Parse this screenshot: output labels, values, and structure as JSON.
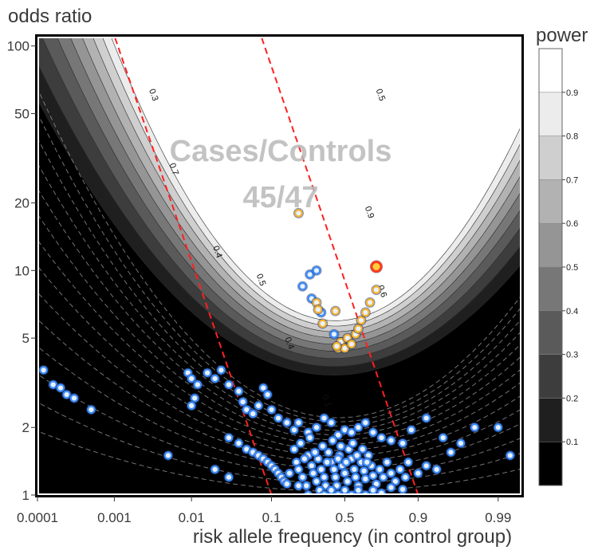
{
  "chart_data": {
    "type": "scatter",
    "title": "",
    "xlabel": "risk allele frequency (in control group)",
    "ylabel": "odds ratio",
    "x_scale": "logit",
    "y_scale": "log",
    "xlim": [
      0.0001,
      0.995
    ],
    "ylim": [
      1,
      110
    ],
    "x_ticks": [
      {
        "value": 0.0001,
        "label": "0.0001"
      },
      {
        "value": 0.001,
        "label": "0.001"
      },
      {
        "value": 0.01,
        "label": "0.01"
      },
      {
        "value": 0.1,
        "label": "0.1"
      },
      {
        "value": 0.5,
        "label": "0.5"
      },
      {
        "value": 0.9,
        "label": "0.9"
      },
      {
        "value": 0.99,
        "label": "0.99"
      }
    ],
    "y_ticks": [
      {
        "value": 1,
        "label": "1"
      },
      {
        "value": 2,
        "label": "2"
      },
      {
        "value": 5,
        "label": "5"
      },
      {
        "value": 10,
        "label": "10"
      },
      {
        "value": 20,
        "label": "20"
      },
      {
        "value": 50,
        "label": "50"
      },
      {
        "value": 100,
        "label": "100"
      }
    ],
    "annotation_lines": [
      "Cases/Controls",
      "45/47"
    ],
    "reference_lines_x": [
      0.1,
      0.9
    ],
    "reference_line_color": "#ff2020",
    "colorbar": {
      "title": "power",
      "ticks": [
        "0.1",
        "0.2",
        "0.3",
        "0.4",
        "0.5",
        "0.6",
        "0.7",
        "0.8",
        "0.9"
      ],
      "levels": [
        "#000000",
        "#1f1f1f",
        "#3d3d3d",
        "#5a5a5a",
        "#777777",
        "#959595",
        "#b2b2b2",
        "#cfcfcf",
        "#ececec",
        "#ffffff"
      ]
    },
    "contour_labels": [
      {
        "text": "0.3",
        "x": 0.003,
        "y": 60
      },
      {
        "text": "0.7",
        "x": 0.0055,
        "y": 28
      },
      {
        "text": "0.4",
        "x": 0.02,
        "y": 12
      },
      {
        "text": "0.5",
        "x": 0.07,
        "y": 9
      },
      {
        "text": "0.4",
        "x": 0.15,
        "y": 4.7
      },
      {
        "text": "0.5",
        "x": 0.73,
        "y": 60
      },
      {
        "text": "0.9",
        "x": 0.66,
        "y": 18
      },
      {
        "text": "0.6",
        "x": 0.74,
        "y": 8
      },
      {
        "text": "0.1",
        "x": 0.35,
        "y": 2.6
      }
    ],
    "series": [
      {
        "color": "#3c8cff",
        "points": [
          [
            0.00012,
            3.6
          ],
          [
            0.00016,
            3.1
          ],
          [
            0.0002,
            3.0
          ],
          [
            0.00024,
            2.8
          ],
          [
            0.0003,
            2.7
          ],
          [
            0.0005,
            2.4
          ],
          [
            0.009,
            3.5
          ],
          [
            0.01,
            3.3
          ],
          [
            0.012,
            3.1
          ],
          [
            0.011,
            2.7
          ],
          [
            0.01,
            2.5
          ],
          [
            0.016,
            3.5
          ],
          [
            0.02,
            3.3
          ],
          [
            0.024,
            3.6
          ],
          [
            0.03,
            3.1
          ],
          [
            0.04,
            2.9
          ],
          [
            0.045,
            2.6
          ],
          [
            0.05,
            2.4
          ],
          [
            0.06,
            2.3
          ],
          [
            0.07,
            2.5
          ],
          [
            0.08,
            3.0
          ],
          [
            0.09,
            2.8
          ],
          [
            0.1,
            2.4
          ],
          [
            0.12,
            2.2
          ],
          [
            0.15,
            2.1
          ],
          [
            0.18,
            1.95
          ],
          [
            0.2,
            2.1
          ],
          [
            0.25,
            1.9
          ],
          [
            0.3,
            2.0
          ],
          [
            0.35,
            2.2
          ],
          [
            0.4,
            2.1
          ],
          [
            0.45,
            1.85
          ],
          [
            0.5,
            1.95
          ],
          [
            0.55,
            1.9
          ],
          [
            0.6,
            2.0
          ],
          [
            0.65,
            2.1
          ],
          [
            0.7,
            1.9
          ],
          [
            0.75,
            1.8
          ],
          [
            0.8,
            1.75
          ],
          [
            0.85,
            1.7
          ],
          [
            0.88,
            1.95
          ],
          [
            0.92,
            2.2
          ],
          [
            0.95,
            1.8
          ],
          [
            0.97,
            1.7
          ],
          [
            0.98,
            2.0
          ],
          [
            0.99,
            2.0
          ],
          [
            0.993,
            1.5
          ],
          [
            0.03,
            1.8
          ],
          [
            0.04,
            1.7
          ],
          [
            0.05,
            1.6
          ],
          [
            0.06,
            1.55
          ],
          [
            0.07,
            1.5
          ],
          [
            0.08,
            1.45
          ],
          [
            0.09,
            1.4
          ],
          [
            0.1,
            1.35
          ],
          [
            0.11,
            1.3
          ],
          [
            0.12,
            1.25
          ],
          [
            0.13,
            1.2
          ],
          [
            0.14,
            1.15
          ],
          [
            0.15,
            1.12
          ],
          [
            0.16,
            1.25
          ],
          [
            0.18,
            1.6
          ],
          [
            0.19,
            1.4
          ],
          [
            0.2,
            1.3
          ],
          [
            0.22,
            1.2
          ],
          [
            0.24,
            1.1
          ],
          [
            0.25,
            1.5
          ],
          [
            0.27,
            1.35
          ],
          [
            0.28,
            1.25
          ],
          [
            0.3,
            1.15
          ],
          [
            0.31,
            1.45
          ],
          [
            0.33,
            1.3
          ],
          [
            0.35,
            1.2
          ],
          [
            0.36,
            1.1
          ],
          [
            0.38,
            1.55
          ],
          [
            0.4,
            1.4
          ],
          [
            0.42,
            1.3
          ],
          [
            0.43,
            1.2
          ],
          [
            0.44,
            1.1
          ],
          [
            0.46,
            1.5
          ],
          [
            0.48,
            1.35
          ],
          [
            0.5,
            1.25
          ],
          [
            0.52,
            1.15
          ],
          [
            0.53,
            1.6
          ],
          [
            0.55,
            1.45
          ],
          [
            0.57,
            1.3
          ],
          [
            0.58,
            1.2
          ],
          [
            0.6,
            1.1
          ],
          [
            0.62,
            1.4
          ],
          [
            0.64,
            1.28
          ],
          [
            0.65,
            1.18
          ],
          [
            0.67,
            1.5
          ],
          [
            0.69,
            1.35
          ],
          [
            0.7,
            1.22
          ],
          [
            0.72,
            1.12
          ],
          [
            0.74,
            1.3
          ],
          [
            0.76,
            1.2
          ],
          [
            0.78,
            1.4
          ],
          [
            0.8,
            1.25
          ],
          [
            0.82,
            1.15
          ],
          [
            0.84,
            1.3
          ],
          [
            0.86,
            1.2
          ],
          [
            0.87,
            1.4
          ],
          [
            0.9,
            1.25
          ],
          [
            0.92,
            1.35
          ],
          [
            0.94,
            1.3
          ],
          [
            0.96,
            1.55
          ],
          [
            0.005,
            1.5
          ],
          [
            0.02,
            1.3
          ],
          [
            0.03,
            1.2
          ],
          [
            0.21,
            1.7
          ],
          [
            0.26,
            1.8
          ],
          [
            0.34,
            1.65
          ],
          [
            0.41,
            1.75
          ],
          [
            0.47,
            1.65
          ],
          [
            0.56,
            1.7
          ],
          [
            0.63,
            1.6
          ],
          [
            0.23,
            1.45
          ],
          [
            0.29,
            1.55
          ],
          [
            0.37,
            1.4
          ],
          [
            0.45,
            1.45
          ],
          [
            0.51,
            1.4
          ],
          [
            0.59,
            1.5
          ],
          [
            0.66,
            1.4
          ],
          [
            0.32,
            1.05
          ],
          [
            0.4,
            1.05
          ],
          [
            0.5,
            1.05
          ],
          [
            0.6,
            1.05
          ],
          [
            0.7,
            1.05
          ],
          [
            0.8,
            1.08
          ],
          [
            0.2,
            1.1
          ],
          [
            0.25,
            1.0
          ],
          [
            0.35,
            1.0
          ],
          [
            0.45,
            1.0
          ],
          [
            0.55,
            1.0
          ],
          [
            0.65,
            1.0
          ],
          [
            0.75,
            1.02
          ],
          [
            0.85,
            1.06
          ],
          [
            0.22,
            8.5
          ],
          [
            0.26,
            9.6
          ],
          [
            0.3,
            10.0
          ],
          [
            0.27,
            7.5
          ],
          [
            0.33,
            6.5
          ],
          [
            0.42,
            5.2
          ]
        ]
      },
      {
        "color": "#f5b12e",
        "points": [
          [
            0.2,
            18.0
          ],
          [
            0.3,
            7.2
          ],
          [
            0.31,
            6.7
          ],
          [
            0.34,
            5.8
          ],
          [
            0.43,
            6.6
          ],
          [
            0.47,
            4.8
          ],
          [
            0.45,
            4.5
          ],
          [
            0.5,
            4.5
          ],
          [
            0.52,
            5.0
          ],
          [
            0.55,
            4.7
          ],
          [
            0.58,
            5.2
          ],
          [
            0.6,
            5.5
          ],
          [
            0.62,
            6.0
          ],
          [
            0.65,
            6.5
          ],
          [
            0.68,
            7.2
          ],
          [
            0.72,
            8.2
          ],
          [
            0.44,
            4.6
          ]
        ]
      },
      {
        "color": "#ff3a1f",
        "points": [
          [
            0.72,
            10.4
          ]
        ]
      }
    ]
  }
}
